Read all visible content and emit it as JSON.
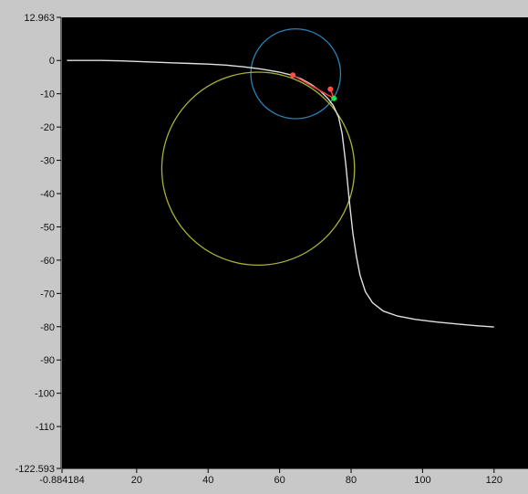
{
  "chart_data": {
    "type": "line",
    "xlim": [
      -0.884184,
      129.5
    ],
    "ylim": [
      -122.593,
      12.963
    ],
    "x_ticks": [
      {
        "value": -0.884184,
        "label": "-0.884184"
      },
      {
        "value": 20,
        "label": "20"
      },
      {
        "value": 40,
        "label": "40"
      },
      {
        "value": 60,
        "label": "60"
      },
      {
        "value": 80,
        "label": "80"
      },
      {
        "value": 100,
        "label": "100"
      },
      {
        "value": 120,
        "label": "120"
      }
    ],
    "y_ticks": [
      {
        "value": 12.963,
        "label": "12.963"
      },
      {
        "value": 0,
        "label": "0"
      },
      {
        "value": -10,
        "label": "-10"
      },
      {
        "value": -20,
        "label": "-20"
      },
      {
        "value": -30,
        "label": "-30"
      },
      {
        "value": -40,
        "label": "-40"
      },
      {
        "value": -50,
        "label": "-50"
      },
      {
        "value": -60,
        "label": "-60"
      },
      {
        "value": -70,
        "label": "-70"
      },
      {
        "value": -80,
        "label": "-80"
      },
      {
        "value": -90,
        "label": "-90"
      },
      {
        "value": -100,
        "label": "-100"
      },
      {
        "value": -110,
        "label": "-110"
      },
      {
        "value": -122.593,
        "label": "-122.593"
      }
    ],
    "grid": false,
    "plot_background": "#000000",
    "panel_background": "#c8c8c8",
    "series": [
      {
        "color": "#e0e0e0",
        "x": [
          0.5,
          5,
          10,
          15,
          20,
          25,
          30,
          35,
          40,
          45,
          50,
          55,
          60,
          63,
          66,
          69,
          71.5,
          73.5,
          75,
          76.5,
          77.5,
          78.5,
          79.5,
          80.5,
          81.5,
          82.5,
          84,
          86,
          89,
          93,
          98,
          104,
          110,
          115,
          120
        ],
        "y": [
          0,
          0,
          0,
          -0.1,
          -0.3,
          -0.5,
          -0.7,
          -0.9,
          -1.1,
          -1.4,
          -1.9,
          -2.6,
          -3.5,
          -4.3,
          -5.5,
          -7.3,
          -9.3,
          -11.4,
          -13.5,
          -17,
          -22,
          -31,
          -42,
          -52,
          -59,
          -64.5,
          -69.5,
          -72.8,
          -75.3,
          -76.8,
          -77.8,
          -78.6,
          -79.2,
          -79.7,
          -80.1
        ]
      }
    ],
    "circles": [
      {
        "color": "#2b82b3",
        "center": [
          64.5,
          -4
        ],
        "radius_y": 13.5
      },
      {
        "color": "#a9b037",
        "center": [
          54,
          -32.5
        ],
        "radius_y": 29
      }
    ],
    "segments": [
      {
        "color": "#e84040",
        "from": [
          63.7,
          -4.4
        ],
        "to": [
          75.2,
          -11.4
        ]
      },
      {
        "color": "#e84040",
        "from": [
          74.2,
          -8.6
        ],
        "to": [
          75.2,
          -11.4
        ]
      }
    ],
    "markers": [
      {
        "color": "#ff4d4d",
        "x": 63.7,
        "y": -4.4
      },
      {
        "color": "#ff4d4d",
        "x": 74.2,
        "y": -8.6
      },
      {
        "color": "#22e04a",
        "x": 75.2,
        "y": -11.4
      }
    ]
  }
}
